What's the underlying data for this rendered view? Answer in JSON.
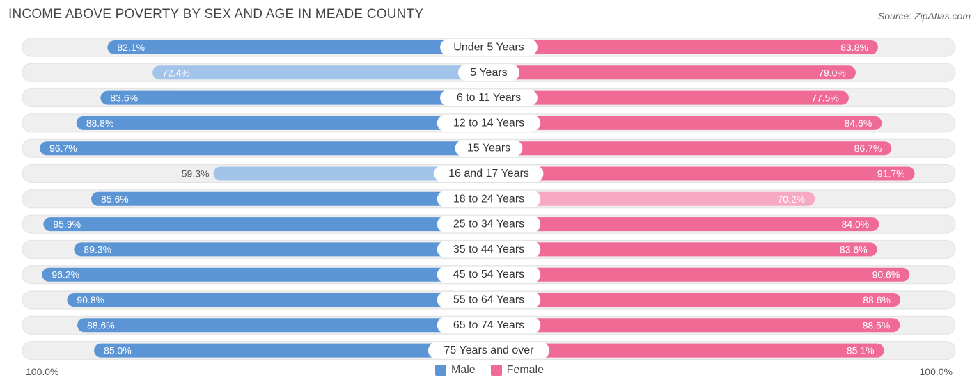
{
  "title": "INCOME ABOVE POVERTY BY SEX AND AGE IN MEADE COUNTY",
  "source": "Source: ZipAtlas.com",
  "axis": {
    "left_label": "100.0%",
    "right_label": "100.0%"
  },
  "legend": {
    "male_label": "Male",
    "female_label": "Female"
  },
  "colors": {
    "male_dark": "#5b95d6",
    "male_light": "#a3c4ea",
    "female_dark": "#f06a96",
    "female_light": "#f7a8c2",
    "track": "#efefef"
  },
  "chart_data": {
    "type": "bar",
    "orientation": "horizontal-diverging",
    "categories": [
      "Under 5 Years",
      "5 Years",
      "6 to 11 Years",
      "12 to 14 Years",
      "15 Years",
      "16 and 17 Years",
      "18 to 24 Years",
      "25 to 34 Years",
      "35 to 44 Years",
      "45 to 54 Years",
      "55 to 64 Years",
      "65 to 74 Years",
      "75 Years and over"
    ],
    "series": [
      {
        "name": "Male",
        "values": [
          82.1,
          72.4,
          83.6,
          88.8,
          96.7,
          59.3,
          85.6,
          95.9,
          89.3,
          96.2,
          90.8,
          88.6,
          85.0
        ],
        "labels": [
          "82.1%",
          "72.4%",
          "83.6%",
          "88.8%",
          "96.7%",
          "59.3%",
          "85.6%",
          "95.9%",
          "89.3%",
          "96.2%",
          "90.8%",
          "88.6%",
          "85.0%"
        ]
      },
      {
        "name": "Female",
        "values": [
          83.8,
          79.0,
          77.5,
          84.6,
          86.7,
          91.7,
          70.2,
          84.0,
          83.6,
          90.6,
          88.6,
          88.5,
          85.1
        ],
        "labels": [
          "83.8%",
          "79.0%",
          "77.5%",
          "84.6%",
          "86.7%",
          "91.7%",
          "70.2%",
          "84.0%",
          "83.6%",
          "90.6%",
          "88.6%",
          "88.5%",
          "85.1%"
        ]
      }
    ],
    "xlim": [
      0,
      100
    ],
    "legend_position": "bottom-center"
  }
}
